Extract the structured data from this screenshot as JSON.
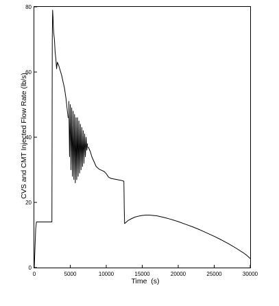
{
  "chart_data": {
    "type": "line",
    "title": "",
    "xlabel": "Time  (s)",
    "ylabel": "CVS and CMT Injected Flow Rate (lb/s)",
    "xlim": [
      0,
      30000
    ],
    "ylim": [
      0,
      80
    ],
    "x_ticks": [
      0,
      5000,
      10000,
      15000,
      20000,
      25000,
      30000
    ],
    "x_tick_labels": [
      "0",
      "5000",
      "10000",
      "15000",
      "20000",
      "25000",
      "30000"
    ],
    "y_ticks": [
      0,
      20,
      40,
      60,
      80
    ],
    "y_tick_labels": [
      "0",
      "20",
      "40",
      "60",
      "80"
    ],
    "grid": false,
    "legend": "none",
    "line_color": "#000000",
    "series": [
      {
        "x": [
          0,
          100,
          200,
          300,
          500,
          700,
          1000,
          1500,
          2000,
          2450,
          2500,
          2550,
          2600,
          2650,
          2700,
          2750,
          2800,
          2900,
          3000,
          3100,
          3200,
          3300,
          3400,
          3600,
          3800,
          4000,
          4200,
          4400,
          4600,
          4700
        ],
        "y": [
          0,
          6,
          12,
          14,
          14,
          14,
          14,
          14,
          14,
          14,
          70,
          79,
          77,
          74,
          72,
          71,
          70,
          66,
          64,
          61,
          63,
          62.5,
          62,
          60.5,
          59,
          57,
          55,
          52,
          48,
          46
        ]
      },
      {
        "x": [
          4800,
          4900,
          5000,
          5100,
          5200,
          5300,
          5400,
          5500,
          5600,
          5700,
          5800,
          5900,
          6000,
          6100,
          6200,
          6300,
          6400,
          6500,
          6600,
          6700,
          6800,
          6900,
          7000,
          7100,
          7200,
          7300,
          7400
        ],
        "y": [
          51,
          34,
          50,
          30,
          49,
          28,
          48,
          27,
          47,
          26,
          46,
          27,
          46,
          28,
          45,
          29,
          44,
          30,
          43,
          31,
          42,
          32,
          41,
          34,
          40,
          36,
          38
        ]
      },
      {
        "x": [
          7500,
          7800,
          8000,
          8300,
          8600,
          9000,
          9400,
          9700,
          10000,
          10300,
          10600,
          11000,
          11500,
          12000,
          12450,
          12500,
          12550,
          12700,
          13000,
          13500,
          14000,
          14500,
          15000,
          15500,
          16000,
          16500,
          17000,
          18000,
          19000,
          20000,
          21000,
          22000,
          23000,
          24000,
          25000,
          26000,
          27000,
          28000,
          29000,
          29500,
          30000
        ],
        "y": [
          37,
          35.5,
          34,
          32.5,
          31,
          30.2,
          29.8,
          29.5,
          28.8,
          27.8,
          27.4,
          27.2,
          27,
          26.8,
          26.5,
          18,
          13.5,
          13.8,
          14.4,
          15,
          15.5,
          15.8,
          16,
          16.1,
          16.1,
          16,
          15.9,
          15.4,
          14.8,
          14.1,
          13.3,
          12.5,
          11.6,
          10.6,
          9.6,
          8.5,
          7.3,
          6,
          4.6,
          3.8,
          2.8
        ]
      }
    ]
  }
}
